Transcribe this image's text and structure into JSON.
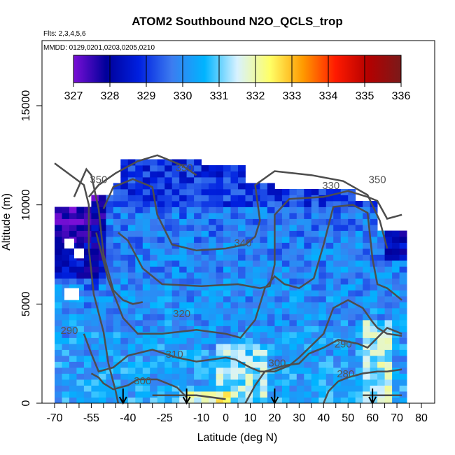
{
  "chart_data": {
    "type": "heatmap",
    "title": "ATOM2 Southbound N2O_QCLS_trop",
    "flights_note": "Flts: 2,3,4,5,6",
    "dates_note": "MMDD: 0129,0201,0203,0205,0210",
    "xlabel": "Latitude (deg N)",
    "ylabel": "Altitude (m)",
    "xlim": [
      -70,
      82
    ],
    "ylim": [
      0,
      17500
    ],
    "x_ticks": [
      -70,
      -55,
      -40,
      -25,
      -10,
      0,
      10,
      20,
      30,
      40,
      50,
      60,
      70,
      80
    ],
    "y_ticks": [
      0,
      5000,
      10000,
      15000
    ],
    "colorbar": {
      "ticks": [
        327,
        328,
        329,
        330,
        331,
        332,
        333,
        334,
        335,
        336
      ],
      "min": 327,
      "max": 336,
      "colors": [
        "#7a0fd6",
        "#00009a",
        "#0020e0",
        "#3c7cf0",
        "#00b4ff",
        "#d8f2ff",
        "#ffff66",
        "#ff9a00",
        "#ff1a00",
        "#b40000",
        "#7a1a1a"
      ]
    },
    "arrows_lat": [
      -42,
      -16,
      20,
      60
    ],
    "contour_labels": [
      {
        "text": "350",
        "x": -17,
        "y": 11700
      },
      {
        "text": "350",
        "x": -52,
        "y": 11100
      },
      {
        "text": "330",
        "x": 43,
        "y": 10800
      },
      {
        "text": "350",
        "x": 62,
        "y": 11100
      },
      {
        "text": "340",
        "x": 7,
        "y": 7900
      },
      {
        "text": "320",
        "x": -18,
        "y": 4350
      },
      {
        "text": "290",
        "x": -64,
        "y": 3500
      },
      {
        "text": "310",
        "x": -21,
        "y": 2300
      },
      {
        "text": "300",
        "x": 21,
        "y": 1850
      },
      {
        "text": "290",
        "x": 48,
        "y": 2800
      },
      {
        "text": "280",
        "x": 49,
        "y": 1300
      },
      {
        "text": "300",
        "x": -34,
        "y": 950
      }
    ]
  }
}
